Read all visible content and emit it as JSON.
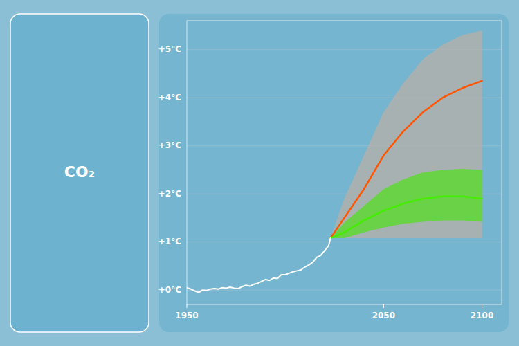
{
  "chart_data": {
    "type": "line",
    "annotations": [
      "CO₂"
    ],
    "xlim": [
      1950,
      2110
    ],
    "xticks": [
      1950,
      2050,
      2100
    ],
    "ylim": [
      -0.3,
      5.6
    ],
    "yticks": [
      {
        "value": 0,
        "label": "+0°C"
      },
      {
        "value": 1,
        "label": "+1°C"
      },
      {
        "value": 2,
        "label": "+2°C"
      },
      {
        "value": 3,
        "label": "+3°C"
      },
      {
        "value": 4,
        "label": "+4°C"
      },
      {
        "value": 5,
        "label": "+5°C"
      }
    ],
    "grid": true,
    "series": [
      {
        "type": "area",
        "color": "#b8b0a8",
        "x": [
          2023,
          2030,
          2040,
          2050,
          2060,
          2070,
          2080,
          2090,
          2100
        ],
        "values": [
          1.08,
          1.9,
          2.8,
          3.7,
          4.3,
          4.8,
          5.1,
          5.3,
          5.4
        ],
        "lower": [
          1.08,
          1.08,
          1.08,
          1.08,
          1.08,
          1.08,
          1.08,
          1.08,
          1.08
        ]
      },
      {
        "type": "area",
        "color": "#55dd22",
        "x": [
          2023,
          2030,
          2040,
          2050,
          2060,
          2070,
          2080,
          2090,
          2100
        ],
        "values": [
          1.08,
          1.4,
          1.75,
          2.1,
          2.3,
          2.45,
          2.5,
          2.52,
          2.5
        ],
        "lower": [
          1.08,
          1.08,
          1.2,
          1.3,
          1.38,
          1.42,
          1.45,
          1.45,
          1.42
        ]
      },
      {
        "type": "line",
        "color": "#ff5500",
        "x": [
          2023,
          2030,
          2040,
          2050,
          2060,
          2070,
          2080,
          2090,
          2100
        ],
        "values": [
          1.08,
          1.5,
          2.1,
          2.8,
          3.3,
          3.7,
          4.0,
          4.2,
          4.35
        ]
      },
      {
        "type": "line",
        "color": "#44ee00",
        "x": [
          2023,
          2030,
          2040,
          2050,
          2060,
          2070,
          2080,
          2090,
          2100
        ],
        "values": [
          1.08,
          1.2,
          1.45,
          1.65,
          1.8,
          1.9,
          1.95,
          1.95,
          1.9
        ]
      },
      {
        "type": "line",
        "color": "#ffffff",
        "x": [
          1950,
          1952,
          1954,
          1956,
          1958,
          1960,
          1962,
          1964,
          1966,
          1968,
          1970,
          1972,
          1974,
          1976,
          1978,
          1980,
          1982,
          1984,
          1986,
          1988,
          1990,
          1992,
          1994,
          1996,
          1998,
          2000,
          2002,
          2004,
          2006,
          2008,
          2010,
          2012,
          2014,
          2016,
          2018,
          2020,
          2022,
          2023
        ],
        "values": [
          0.05,
          0.02,
          -0.02,
          -0.05,
          0.0,
          -0.01,
          0.02,
          0.03,
          0.02,
          0.05,
          0.04,
          0.06,
          0.04,
          0.03,
          0.07,
          0.1,
          0.08,
          0.12,
          0.14,
          0.18,
          0.22,
          0.2,
          0.25,
          0.24,
          0.32,
          0.32,
          0.35,
          0.38,
          0.4,
          0.42,
          0.48,
          0.52,
          0.58,
          0.68,
          0.72,
          0.82,
          0.92,
          1.08
        ]
      }
    ]
  }
}
